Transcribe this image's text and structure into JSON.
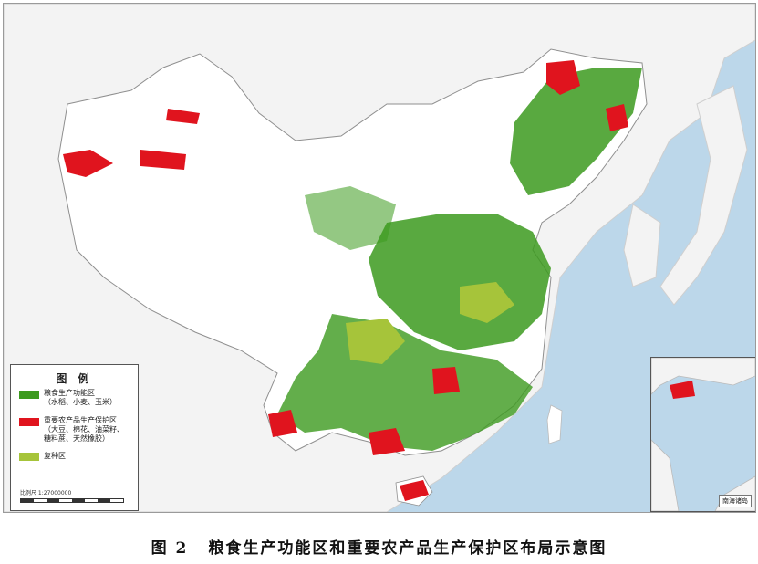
{
  "legend": {
    "title": "图 例",
    "items": [
      {
        "label": "粮食生产功能区",
        "sub": "（水稻、小麦、玉米）",
        "color": "#3c9a1e"
      },
      {
        "label": "重要农产品生产保护区",
        "sub": "（大豆、棉花、油菜籽、",
        "sub2": "糖料蔗、天然橡胶）",
        "color": "#e0141e"
      },
      {
        "label": "复种区",
        "color": "#a6c43a"
      }
    ],
    "scale": "比例尺  1:27000000"
  },
  "inset": {
    "label": "南海诸岛"
  },
  "caption": {
    "number": "图 2",
    "text": "粮食生产功能区和重要农产品生产保护区布局示意图"
  }
}
